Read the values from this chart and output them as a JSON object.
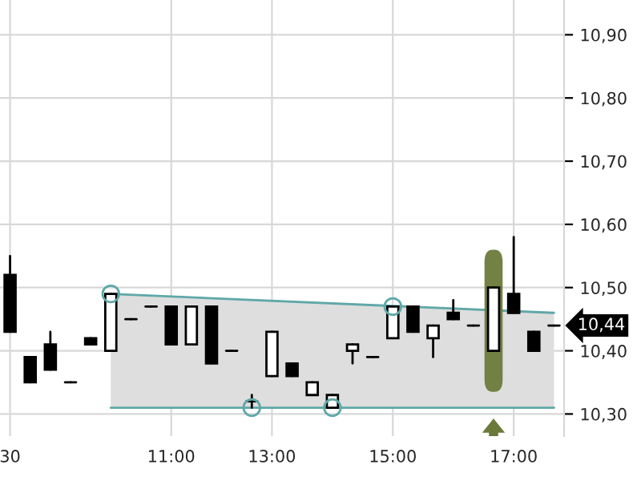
{
  "chart_data": {
    "type": "candlestick",
    "categories": [
      "30",
      null,
      null,
      null,
      null,
      null,
      null,
      null,
      "11:00",
      null,
      null,
      null,
      null,
      "13:00",
      null,
      null,
      null,
      null,
      null,
      "15:00",
      null,
      null,
      null,
      null,
      null,
      "17:00",
      null,
      null
    ],
    "ohlc": [
      [
        10.52,
        10.55,
        10.43,
        10.43
      ],
      [
        10.39,
        10.39,
        10.35,
        10.35
      ],
      [
        10.41,
        10.43,
        10.37,
        10.37
      ],
      [
        10.35,
        10.35,
        10.35,
        10.35
      ],
      [
        10.42,
        10.42,
        10.41,
        10.41
      ],
      [
        10.4,
        10.49,
        10.4,
        10.49
      ],
      [
        10.45,
        10.45,
        10.45,
        10.45
      ],
      [
        10.47,
        10.47,
        10.47,
        10.47
      ],
      [
        10.47,
        10.47,
        10.41,
        10.41
      ],
      [
        10.41,
        10.47,
        10.41,
        10.47
      ],
      [
        10.47,
        10.47,
        10.38,
        10.38
      ],
      [
        10.4,
        10.4,
        10.4,
        10.4
      ],
      [
        10.32,
        10.33,
        10.31,
        10.32
      ],
      [
        10.36,
        10.43,
        10.36,
        10.43
      ],
      [
        10.38,
        10.38,
        10.36,
        10.36
      ],
      [
        10.33,
        10.35,
        10.33,
        10.35
      ],
      [
        10.31,
        10.33,
        10.31,
        10.33
      ],
      [
        10.4,
        10.41,
        10.38,
        10.41
      ],
      [
        10.39,
        10.39,
        10.39,
        10.39
      ],
      [
        10.42,
        10.47,
        10.42,
        10.47
      ],
      [
        10.47,
        10.47,
        10.43,
        10.43
      ],
      [
        10.42,
        10.44,
        10.39,
        10.44
      ],
      [
        10.46,
        10.48,
        10.45,
        10.45
      ],
      [
        10.44,
        10.44,
        10.44,
        10.44
      ],
      [
        10.4,
        10.5,
        10.4,
        10.5
      ],
      [
        10.49,
        10.58,
        10.46,
        10.46
      ],
      [
        10.43,
        10.43,
        10.4,
        10.4
      ],
      [
        10.44,
        10.44,
        10.44,
        10.44
      ]
    ],
    "color": "#000000",
    "series": [
      {
        "type": "line",
        "color": "#5fa8a8",
        "values": [
          null,
          null,
          null,
          null,
          null,
          10.49,
          null,
          null,
          null,
          null,
          null,
          null,
          null,
          null,
          null,
          null,
          null,
          null,
          null,
          null,
          null,
          null,
          null,
          null,
          null,
          null,
          null,
          10.46
        ],
        "lower": [
          null,
          null,
          null,
          null,
          null,
          10.31,
          null,
          null,
          null,
          null,
          null,
          null,
          null,
          null,
          null,
          null,
          null,
          null,
          null,
          null,
          null,
          null,
          null,
          null,
          null,
          null,
          null,
          10.31
        ],
        "upper": [
          null,
          null,
          null,
          null,
          null,
          10.49,
          null,
          null,
          null,
          null,
          null,
          null,
          null,
          null,
          null,
          null,
          null,
          null,
          null,
          null,
          null,
          null,
          null,
          null,
          null,
          null,
          null,
          10.46
        ]
      },
      {
        "type": "line",
        "color": "#5fa8a8",
        "values": [
          null,
          null,
          null,
          null,
          null,
          10.31,
          null,
          null,
          null,
          null,
          null,
          null,
          null,
          null,
          null,
          null,
          null,
          null,
          null,
          null,
          null,
          null,
          null,
          null,
          null,
          null,
          null,
          10.31
        ]
      },
      {
        "type": "scatter",
        "marker": "circle",
        "color": "#5fa8a8",
        "values": [
          null,
          null,
          null,
          null,
          null,
          10.49,
          null,
          null,
          null,
          null,
          null,
          null,
          10.31,
          null,
          null,
          null,
          10.31,
          null,
          null,
          10.47,
          null,
          null,
          null,
          null,
          null,
          null,
          null,
          null
        ]
      }
    ],
    "ylim": [
      10.265,
      10.955
    ],
    "yticks": [
      {
        "value": 10.3,
        "label": "10,30"
      },
      {
        "value": 10.4,
        "label": "10,40"
      },
      {
        "value": 10.5,
        "label": "10,50"
      },
      {
        "value": 10.6,
        "label": "10,60"
      },
      {
        "value": 10.7,
        "label": "10,70"
      },
      {
        "value": 10.8,
        "label": "10,80"
      },
      {
        "value": 10.9,
        "label": "10,90"
      }
    ],
    "grid": true,
    "annotations": [
      "10,44"
    ]
  }
}
